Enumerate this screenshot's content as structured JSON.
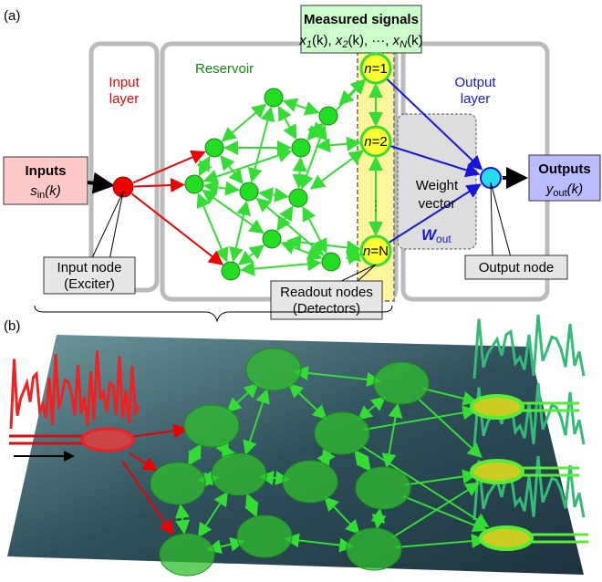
{
  "panel_a": {
    "label": "(a)",
    "input_layer": [
      "Input",
      "layer"
    ],
    "reservoir": "Reservoir",
    "output_layer": [
      "Output",
      "layer"
    ],
    "measured_signals": {
      "title": "Measured signals",
      "formula": [
        [
          "x",
          "1",
          "(k), "
        ],
        [
          "x",
          "2",
          "(k), ···, "
        ],
        [
          "x",
          "N",
          "(k)"
        ]
      ]
    },
    "inputs": {
      "title": "Inputs",
      "symbol": "s",
      "sub": "in",
      "arg": "(k)"
    },
    "outputs": {
      "title": "Outputs",
      "symbol": "y",
      "sub": "out",
      "arg": "(k)"
    },
    "readout_nodes": [
      [
        "n",
        "=1"
      ],
      [
        "n",
        "=2"
      ],
      [
        "n",
        "=N"
      ]
    ],
    "vdots": "⋮",
    "weight": [
      "Weight",
      "vector"
    ],
    "w_out": {
      "symbol": "W",
      "sub": "out"
    },
    "input_node": [
      "Input node",
      "(Exciter)"
    ],
    "readout_label": [
      "Readout nodes",
      "(Detectors)"
    ],
    "output_node": "Output node"
  },
  "panel_b": {
    "label": "(b)"
  }
}
